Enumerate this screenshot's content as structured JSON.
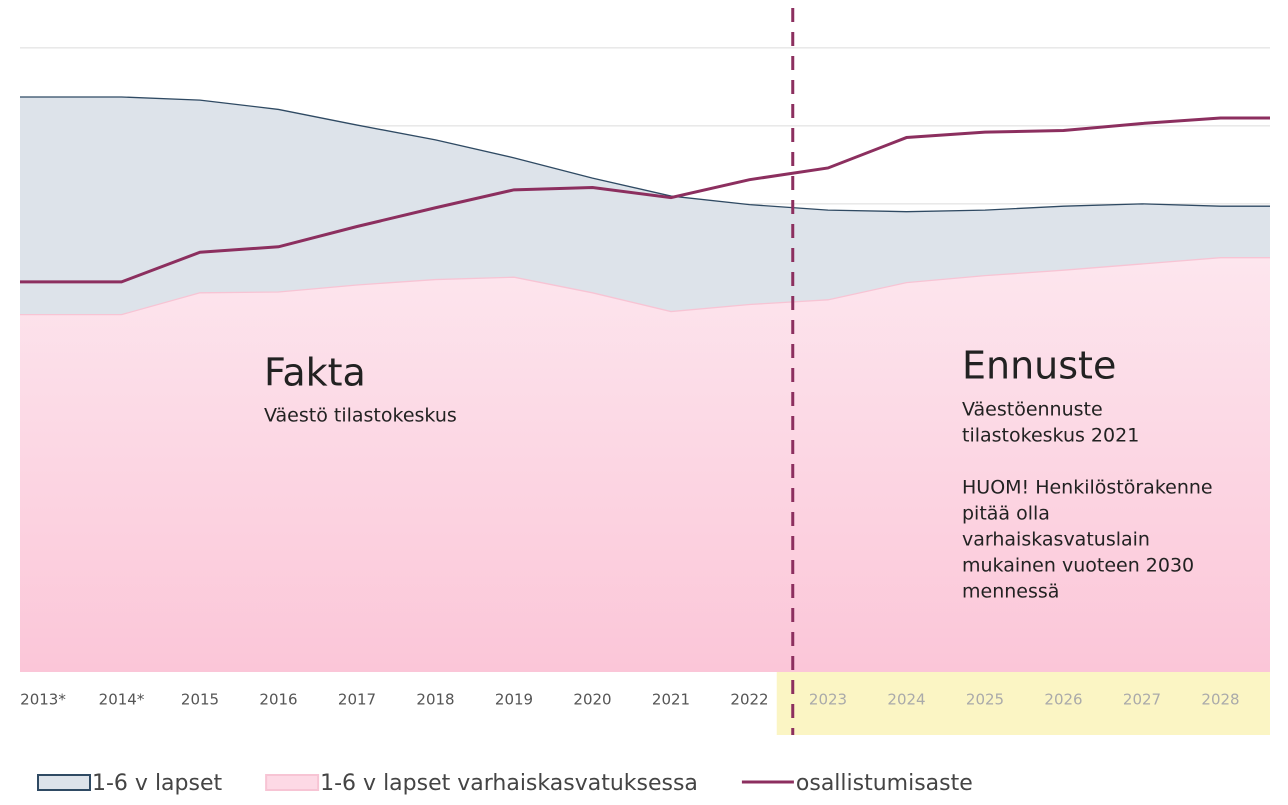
{
  "chart_data": {
    "type": "area",
    "categories": [
      "2013*",
      "2014*",
      "2015",
      "2016",
      "2017",
      "2018",
      "2019",
      "2020",
      "2021",
      "2022",
      "2023",
      "2024",
      "2025",
      "2026",
      "2027",
      "2028"
    ],
    "series": [
      {
        "name": "1-6 v lapset",
        "color": "#dde3ea",
        "stroke": "#2f4a63",
        "kind": "area",
        "values": [
          73.7,
          73.7,
          73.3,
          72.1,
          70.1,
          68.2,
          65.9,
          63.3,
          61.0,
          59.9,
          59.2,
          59.0,
          59.2,
          59.7,
          60.0,
          59.7
        ]
      },
      {
        "name": "1-6 v lapset varhaiskasvatuksessa",
        "color": "#fdd9e5",
        "stroke": "#f7c4d4",
        "kind": "area",
        "values": [
          45.8,
          45.8,
          48.6,
          48.7,
          49.6,
          50.3,
          50.6,
          48.6,
          46.2,
          47.1,
          47.7,
          49.9,
          50.8,
          51.5,
          52.3,
          53.1
        ]
      },
      {
        "name": "osallistumisaste",
        "color": "#8c2f5f",
        "kind": "line",
        "values": [
          50.0,
          50.0,
          53.8,
          54.5,
          57.1,
          59.5,
          61.8,
          62.1,
          60.8,
          63.1,
          64.6,
          68.5,
          69.2,
          69.4,
          70.3,
          71.0
        ]
      }
    ],
    "ylim": [
      0,
      86
    ],
    "ygrid": [
      60,
      70,
      80
    ],
    "annotations": [
      {
        "title": "Fakta",
        "lines": [
          "Väestö tilastokeskus"
        ]
      },
      {
        "title": "Ennuste",
        "lines": [
          "Väestöennuste",
          "tilastokeskus 2021",
          "",
          "HUOM! Henkilöstörakenne",
          "pitää olla",
          "varhaiskasvatuslain",
          "mukainen vuoteen 2030",
          "mennessä"
        ]
      }
    ],
    "forecast_start": "2023"
  }
}
